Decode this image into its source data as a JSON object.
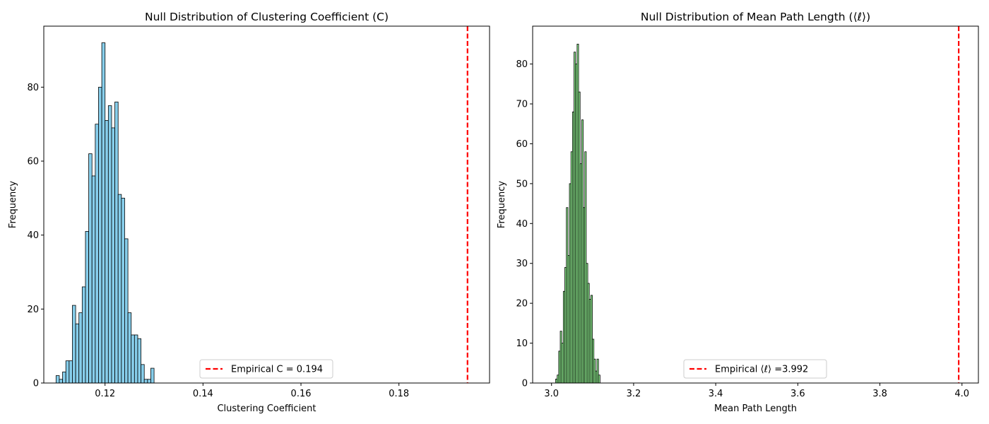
{
  "chart_data": [
    {
      "type": "bar",
      "title": "Null Distribution of Clustering Coefficient (C)",
      "xlabel": "Clustering Coefficient",
      "ylabel": "Frequency",
      "xlim": [
        0.1075,
        0.1985
      ],
      "ylim": [
        0,
        96.5
      ],
      "xticks": [
        {
          "value": 0.12,
          "label": "0.12"
        },
        {
          "value": 0.14,
          "label": "0.14"
        },
        {
          "value": 0.16,
          "label": "0.16"
        },
        {
          "value": 0.18,
          "label": "0.18"
        }
      ],
      "yticks": [
        {
          "value": 0,
          "label": "0"
        },
        {
          "value": 20,
          "label": "20"
        },
        {
          "value": 40,
          "label": "40"
        },
        {
          "value": 60,
          "label": "60"
        },
        {
          "value": 80,
          "label": "80"
        }
      ],
      "bin_start": 0.11,
      "bin_width": 0.000667,
      "counts": [
        2,
        1,
        3,
        6,
        6,
        21,
        16,
        19,
        26,
        41,
        62,
        56,
        70,
        80,
        92,
        71,
        75,
        69,
        76,
        51,
        50,
        39,
        19,
        13,
        13,
        12,
        5,
        1,
        1,
        4
      ],
      "bar_color": "#87ceeb",
      "edge_color": "#000000",
      "reference_line": {
        "value": 0.194,
        "color": "#ff0000",
        "style": "dashed"
      },
      "legend": {
        "position": "lower-center",
        "label": "Empirical C = 0.194"
      },
      "grid": false
    },
    {
      "type": "bar",
      "title": "Null Distribution of Mean Path Length (⟨ℓ⟩)",
      "xlabel": "Mean Path Length",
      "ylabel": "Frequency",
      "xlim": [
        2.954,
        4.04
      ],
      "ylim": [
        0,
        89.5
      ],
      "xticks": [
        {
          "value": 3.0,
          "label": "3.0"
        },
        {
          "value": 3.2,
          "label": "3.2"
        },
        {
          "value": 3.4,
          "label": "3.4"
        },
        {
          "value": 3.6,
          "label": "3.6"
        },
        {
          "value": 3.8,
          "label": "3.8"
        },
        {
          "value": 4.0,
          "label": "4.0"
        }
      ],
      "yticks": [
        {
          "value": 0,
          "label": "0"
        },
        {
          "value": 10,
          "label": "10"
        },
        {
          "value": 20,
          "label": "20"
        },
        {
          "value": 30,
          "label": "30"
        },
        {
          "value": 40,
          "label": "40"
        },
        {
          "value": 50,
          "label": "50"
        },
        {
          "value": 60,
          "label": "60"
        },
        {
          "value": 70,
          "label": "70"
        },
        {
          "value": 80,
          "label": "80"
        }
      ],
      "bin_start": 3.01,
      "bin_width": 0.00373,
      "counts": [
        1,
        2,
        8,
        13,
        10,
        23,
        29,
        44,
        32,
        50,
        58,
        68,
        83,
        80,
        85,
        73,
        55,
        66,
        44,
        58,
        30,
        25,
        21,
        22,
        11,
        6,
        3,
        6,
        2,
        0
      ],
      "bar_color": "#90ee90",
      "edge_color": "#000000",
      "reference_line": {
        "value": 3.992,
        "color": "#ff0000",
        "style": "dashed"
      },
      "legend": {
        "position": "lower-center",
        "label": "Empirical ⟨ℓ⟩ =3.992"
      },
      "grid": false
    }
  ]
}
